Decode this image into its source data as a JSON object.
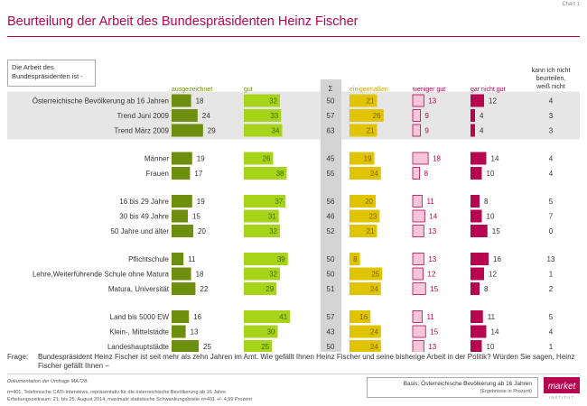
{
  "page": {
    "chart_label": "Chart 1",
    "title": "Beurteilung der Arbeit des Bundespräsidenten Heinz Fischer",
    "question_box": "Die Arbeit des Bundespräsidenten ist -",
    "frage_label": "Frage:",
    "frage_text": "Bundespräsident Heinz Fischer ist seit mehr als zehn Jahren im Amt. Wie gefällt Ihnen Heinz Fischer und seine bisherige Arbeit in der Politik? Würden Sie sagen, Heinz Fischer gefällt Ihnen –",
    "footer_doc": "Dokumentation der Umfrage MA728:",
    "footer_line1": "n=401, Telefonische CATI-Interviews, repräsentativ für die österreichische Bevölkerung ab 16 Jahre",
    "footer_line2": "Erhebungszeitraum: 21. bis 25. August 2014; maximale statistische Schwankungsbreite n=401 +/- 4,99 Prozent",
    "basis_line1": "Basis: Österreichische Bevölkerung ab 16 Jahren",
    "basis_line2": "(Ergebnisse in Prozent)",
    "logo_text": "market",
    "logo_sub": "INSTITUT"
  },
  "chart_data": {
    "type": "bar",
    "columns": [
      {
        "key": "ausgezeichnet",
        "label": "ausgezeichnet",
        "color": "#6e8f0d"
      },
      {
        "key": "gut",
        "label": "gut",
        "color": "#a5d41a"
      },
      {
        "key": "sum",
        "label": "Σ",
        "color": "#333333"
      },
      {
        "key": "einigermassen",
        "label": "einigermaßen",
        "color": "#e0c400"
      },
      {
        "key": "weniger_gut",
        "label": "weniger gut",
        "color": "#f7c6d9"
      },
      {
        "key": "gar_nicht_gut",
        "label": "gar nicht gut",
        "color": "#b5064f"
      },
      {
        "key": "kann_nicht",
        "label": "kann ich nicht beurteilen, weiß nicht",
        "color": "#333333"
      }
    ],
    "header_label_colors": {
      "ausgezeichnet": "#6e8f0d",
      "gut": "#6e8f0d",
      "sum": "#333333",
      "einigermassen": "#c9a700",
      "weniger_gut": "#b5064f",
      "gar_nicht_gut": "#b5064f",
      "kann_nicht": "#333333"
    },
    "shaded_group_color": "#e6e6e6",
    "groups": [
      {
        "shaded": true,
        "rows": [
          {
            "label": "Österreichische Bevölkerung ab 16 Jahren",
            "ausgezeichnet": 18,
            "gut": 32,
            "sum": 50,
            "einigermassen": 21,
            "weniger_gut": 13,
            "gar_nicht_gut": 12,
            "kann_nicht": 4
          },
          {
            "label": "Trend Juni 2009",
            "ausgezeichnet": 24,
            "gut": 33,
            "sum": 57,
            "einigermassen": 26,
            "weniger_gut": 9,
            "gar_nicht_gut": 4,
            "kann_nicht": 3
          },
          {
            "label": "Trend März 2009",
            "ausgezeichnet": 29,
            "gut": 34,
            "sum": 63,
            "einigermassen": 21,
            "weniger_gut": 9,
            "gar_nicht_gut": 4,
            "kann_nicht": 3
          }
        ]
      },
      {
        "shaded": false,
        "rows": [
          {
            "label": "Männer",
            "ausgezeichnet": 19,
            "gut": 26,
            "sum": 45,
            "einigermassen": 19,
            "weniger_gut": 18,
            "gar_nicht_gut": 14,
            "kann_nicht": 4
          },
          {
            "label": "Frauen",
            "ausgezeichnet": 17,
            "gut": 38,
            "sum": 55,
            "einigermassen": 24,
            "weniger_gut": 8,
            "gar_nicht_gut": 10,
            "kann_nicht": 4
          }
        ]
      },
      {
        "shaded": false,
        "rows": [
          {
            "label": "16 bis 29 Jahre",
            "ausgezeichnet": 19,
            "gut": 37,
            "sum": 56,
            "einigermassen": 20,
            "weniger_gut": 11,
            "gar_nicht_gut": 8,
            "kann_nicht": 5
          },
          {
            "label": "30 bis 49 Jahre",
            "ausgezeichnet": 15,
            "gut": 31,
            "sum": 46,
            "einigermassen": 23,
            "weniger_gut": 14,
            "gar_nicht_gut": 10,
            "kann_nicht": 7
          },
          {
            "label": "50 Jahre und älter",
            "ausgezeichnet": 20,
            "gut": 32,
            "sum": 52,
            "einigermassen": 21,
            "weniger_gut": 13,
            "gar_nicht_gut": 15,
            "kann_nicht": 0
          }
        ]
      },
      {
        "shaded": false,
        "rows": [
          {
            "label": "Pflichtschule",
            "ausgezeichnet": 11,
            "gut": 39,
            "sum": 50,
            "einigermassen": 8,
            "weniger_gut": 13,
            "gar_nicht_gut": 16,
            "kann_nicht": 13
          },
          {
            "label": "Lehre,Weiterführende Schule ohne Matura",
            "ausgezeichnet": 18,
            "gut": 32,
            "sum": 50,
            "einigermassen": 25,
            "weniger_gut": 12,
            "gar_nicht_gut": 12,
            "kann_nicht": 1
          },
          {
            "label": "Matura, Universität",
            "ausgezeichnet": 22,
            "gut": 29,
            "sum": 51,
            "einigermassen": 24,
            "weniger_gut": 15,
            "gar_nicht_gut": 8,
            "kann_nicht": 2
          }
        ]
      },
      {
        "shaded": false,
        "rows": [
          {
            "label": "Land bis 5000 EW",
            "ausgezeichnet": 16,
            "gut": 41,
            "sum": 57,
            "einigermassen": 16,
            "weniger_gut": 11,
            "gar_nicht_gut": 11,
            "kann_nicht": 5
          },
          {
            "label": "Klein-, Mittelstädte",
            "ausgezeichnet": 13,
            "gut": 30,
            "sum": 43,
            "einigermassen": 24,
            "weniger_gut": 15,
            "gar_nicht_gut": 14,
            "kann_nicht": 4
          },
          {
            "label": "Landeshauptstädte",
            "ausgezeichnet": 25,
            "gut": 25,
            "sum": 50,
            "einigermassen": 24,
            "weniger_gut": 13,
            "gar_nicht_gut": 10,
            "kann_nicht": 1
          }
        ]
      }
    ]
  }
}
